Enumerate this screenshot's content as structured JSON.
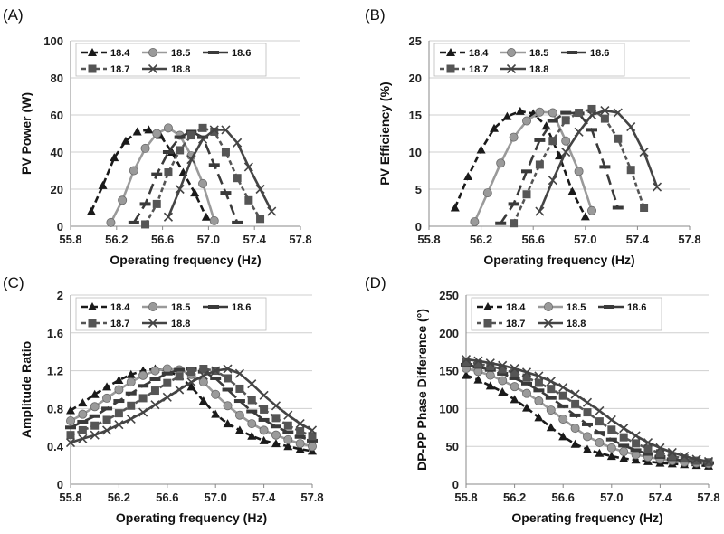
{
  "chart_data": [
    {
      "id": "A",
      "type": "line",
      "panel_label": "(A)",
      "title": "",
      "xlabel": "Operating frequency (Hz)",
      "ylabel": "PV Power (W)",
      "xlim": [
        55.8,
        57.8
      ],
      "ylim": [
        0,
        100
      ],
      "xticks": [
        "55.8",
        "56.2",
        "56.6",
        "57.0",
        "57.4",
        "57.8"
      ],
      "yticks": [
        "0",
        "20",
        "40",
        "60",
        "80",
        "100"
      ],
      "grid": "horizontal",
      "legend_position": "top",
      "series": [
        {
          "name": "18.4",
          "color": "#1a1a1a",
          "marker": "triangle",
          "x": [
            55.98,
            56.08,
            56.18,
            56.28,
            56.38,
            56.48,
            56.58,
            56.68,
            56.78,
            56.88,
            56.98
          ],
          "y": [
            8,
            22,
            37,
            46,
            51,
            52,
            49,
            40,
            29,
            18,
            5
          ]
        },
        {
          "name": "18.5",
          "color": "#9a9a9a",
          "marker": "circle",
          "x": [
            56.15,
            56.25,
            56.35,
            56.45,
            56.55,
            56.65,
            56.75,
            56.85,
            56.95,
            57.05
          ],
          "y": [
            2,
            14,
            30,
            42,
            50,
            53,
            49,
            38,
            23,
            3
          ]
        },
        {
          "name": "18.6",
          "color": "#3a3a3a",
          "marker": "dash",
          "x": [
            56.35,
            56.45,
            56.55,
            56.65,
            56.75,
            56.85,
            56.95,
            57.05,
            57.15,
            57.25
          ],
          "y": [
            2,
            12,
            28,
            40,
            48,
            51,
            48,
            33,
            18,
            2
          ]
        },
        {
          "name": "18.7",
          "color": "#555555",
          "marker": "square",
          "x": [
            56.45,
            56.55,
            56.65,
            56.75,
            56.85,
            56.95,
            57.05,
            57.15,
            57.25,
            57.35,
            57.45
          ],
          "y": [
            1,
            12,
            29,
            41,
            49,
            53,
            51,
            40,
            26,
            14,
            4
          ]
        },
        {
          "name": "18.8",
          "color": "#444444",
          "marker": "x",
          "x": [
            56.65,
            56.75,
            56.85,
            56.95,
            57.05,
            57.15,
            57.25,
            57.35,
            57.45,
            57.55
          ],
          "y": [
            5,
            20,
            36,
            47,
            52,
            52,
            45,
            32,
            20,
            8
          ]
        }
      ]
    },
    {
      "id": "B",
      "type": "line",
      "panel_label": "(B)",
      "title": "",
      "xlabel": "Operating frequency (Hz)",
      "ylabel": "PV Efficiency (%)",
      "xlim": [
        55.8,
        57.8
      ],
      "ylim": [
        0,
        25
      ],
      "xticks": [
        "55.8",
        "56.2",
        "56.6",
        "57.0",
        "57.4",
        "57.8"
      ],
      "yticks": [
        "0",
        "5",
        "10",
        "15",
        "20",
        "25"
      ],
      "grid": "horizontal",
      "legend_position": "top",
      "series": [
        {
          "name": "18.4",
          "color": "#1a1a1a",
          "marker": "triangle",
          "x": [
            56.0,
            56.1,
            56.2,
            56.3,
            56.4,
            56.5,
            56.6,
            56.7,
            56.8,
            56.9,
            57.0
          ],
          "y": [
            2.5,
            6.7,
            10.3,
            13.2,
            14.8,
            15.5,
            15.2,
            13.5,
            9.5,
            4.7,
            1.3
          ]
        },
        {
          "name": "18.5",
          "color": "#9a9a9a",
          "marker": "circle",
          "x": [
            56.15,
            56.25,
            56.35,
            56.45,
            56.55,
            56.65,
            56.75,
            56.85,
            56.95,
            57.05
          ],
          "y": [
            0.6,
            4.5,
            8.5,
            12.0,
            14.2,
            15.4,
            15.3,
            11.5,
            7.4,
            2.1
          ]
        },
        {
          "name": "18.6",
          "color": "#3a3a3a",
          "marker": "dash",
          "x": [
            56.35,
            56.45,
            56.55,
            56.65,
            56.75,
            56.85,
            56.95,
            57.05,
            57.15,
            57.25
          ],
          "y": [
            0.4,
            3.0,
            7.4,
            11.6,
            14.2,
            15.3,
            15.2,
            13.0,
            8.0,
            2.5
          ]
        },
        {
          "name": "18.7",
          "color": "#555555",
          "marker": "square",
          "x": [
            56.45,
            56.55,
            56.65,
            56.75,
            56.85,
            56.95,
            57.05,
            57.15,
            57.25,
            57.35,
            57.45
          ],
          "y": [
            0.4,
            4.3,
            8.3,
            11.5,
            14.3,
            15.3,
            15.8,
            14.5,
            11.8,
            7.6,
            2.5
          ]
        },
        {
          "name": "18.8",
          "color": "#444444",
          "marker": "x",
          "x": [
            56.65,
            56.75,
            56.85,
            56.95,
            57.05,
            57.15,
            57.25,
            57.35,
            57.45,
            57.55
          ],
          "y": [
            2.0,
            6.2,
            10.0,
            12.7,
            15.0,
            15.6,
            15.3,
            13.4,
            10.0,
            5.3
          ]
        }
      ]
    },
    {
      "id": "C",
      "type": "line",
      "panel_label": "(C)",
      "title": "",
      "xlabel": "Operating frequency (Hz)",
      "ylabel": "Amplitude Ratio",
      "xlim": [
        55.8,
        57.8
      ],
      "ylim": [
        0,
        2
      ],
      "xticks": [
        "55.8",
        "56.2",
        "56.6",
        "57.0",
        "57.4",
        "57.8"
      ],
      "yticks": [
        "0",
        "0.4",
        "0.8",
        "1.2",
        "1.6",
        "2"
      ],
      "grid": "horizontal",
      "legend_position": "top",
      "series": [
        {
          "name": "18.4",
          "color": "#1a1a1a",
          "marker": "triangle",
          "x": [
            55.8,
            55.9,
            56.0,
            56.1,
            56.2,
            56.3,
            56.4,
            56.5,
            56.6,
            56.7,
            56.8,
            56.9,
            57.0,
            57.1,
            57.2,
            57.3,
            57.4,
            57.5,
            57.6,
            57.7,
            57.8
          ],
          "y": [
            0.78,
            0.86,
            0.95,
            1.03,
            1.1,
            1.16,
            1.2,
            1.22,
            1.2,
            1.14,
            1.03,
            0.88,
            0.74,
            0.64,
            0.57,
            0.51,
            0.46,
            0.43,
            0.4,
            0.37,
            0.35
          ]
        },
        {
          "name": "18.5",
          "color": "#9a9a9a",
          "marker": "circle",
          "x": [
            55.8,
            55.9,
            56.0,
            56.1,
            56.2,
            56.3,
            56.4,
            56.5,
            56.6,
            56.7,
            56.8,
            56.9,
            57.0,
            57.1,
            57.2,
            57.3,
            57.4,
            57.5,
            57.6,
            57.7,
            57.8
          ],
          "y": [
            0.67,
            0.74,
            0.82,
            0.91,
            1.0,
            1.08,
            1.15,
            1.2,
            1.22,
            1.21,
            1.16,
            1.08,
            0.95,
            0.83,
            0.73,
            0.64,
            0.57,
            0.52,
            0.47,
            0.43,
            0.4
          ]
        },
        {
          "name": "18.6",
          "color": "#3a3a3a",
          "marker": "dash",
          "x": [
            55.8,
            55.9,
            56.0,
            56.1,
            56.2,
            56.3,
            56.4,
            56.5,
            56.6,
            56.7,
            56.8,
            56.9,
            57.0,
            57.1,
            57.2,
            57.3,
            57.4,
            57.5,
            57.6,
            57.7,
            57.8
          ],
          "y": [
            0.6,
            0.66,
            0.72,
            0.8,
            0.88,
            0.96,
            1.04,
            1.11,
            1.17,
            1.21,
            1.22,
            1.19,
            1.12,
            1.0,
            0.88,
            0.77,
            0.68,
            0.61,
            0.55,
            0.5,
            0.46
          ]
        },
        {
          "name": "18.7",
          "color": "#555555",
          "marker": "square",
          "x": [
            55.8,
            55.9,
            56.0,
            56.1,
            56.2,
            56.3,
            56.4,
            56.5,
            56.6,
            56.7,
            56.8,
            56.9,
            57.0,
            57.1,
            57.2,
            57.3,
            57.4,
            57.5,
            57.6,
            57.7,
            57.8
          ],
          "y": [
            0.52,
            0.57,
            0.62,
            0.68,
            0.75,
            0.83,
            0.91,
            0.99,
            1.07,
            1.14,
            1.19,
            1.22,
            1.2,
            1.12,
            1.01,
            0.89,
            0.79,
            0.7,
            0.62,
            0.56,
            0.51
          ]
        },
        {
          "name": "18.8",
          "color": "#444444",
          "marker": "x",
          "x": [
            55.8,
            55.9,
            56.0,
            56.1,
            56.2,
            56.3,
            56.4,
            56.5,
            56.6,
            56.7,
            56.8,
            56.9,
            57.0,
            57.1,
            57.2,
            57.3,
            57.4,
            57.5,
            57.6,
            57.7,
            57.8
          ],
          "y": [
            0.44,
            0.48,
            0.52,
            0.57,
            0.63,
            0.69,
            0.76,
            0.84,
            0.92,
            1.0,
            1.08,
            1.15,
            1.2,
            1.22,
            1.17,
            1.06,
            0.94,
            0.83,
            0.73,
            0.64,
            0.57
          ]
        }
      ]
    },
    {
      "id": "D",
      "type": "line",
      "panel_label": "(D)",
      "title": "",
      "xlabel": "Operating frequency (Hz)",
      "ylabel": "DP-PP Phase Difference (°)",
      "xlim": [
        55.8,
        57.8
      ],
      "ylim": [
        0,
        250
      ],
      "xticks": [
        "55.8",
        "56.2",
        "56.6",
        "57.0",
        "57.4",
        "57.8"
      ],
      "yticks": [
        "0",
        "50",
        "100",
        "150",
        "200",
        "250"
      ],
      "grid": "horizontal",
      "legend_position": "top",
      "series": [
        {
          "name": "18.4",
          "color": "#1a1a1a",
          "marker": "triangle",
          "x": [
            55.8,
            55.9,
            56.0,
            56.1,
            56.2,
            56.3,
            56.4,
            56.5,
            56.6,
            56.7,
            56.8,
            56.9,
            57.0,
            57.1,
            57.2,
            57.3,
            57.4,
            57.5,
            57.6,
            57.7,
            57.8
          ],
          "y": [
            144,
            138,
            130,
            122,
            112,
            101,
            88,
            75,
            63,
            53,
            46,
            41,
            37,
            34,
            32,
            30,
            28,
            27,
            26,
            25,
            24
          ]
        },
        {
          "name": "18.5",
          "color": "#9a9a9a",
          "marker": "circle",
          "x": [
            55.8,
            55.9,
            56.0,
            56.1,
            56.2,
            56.3,
            56.4,
            56.5,
            56.6,
            56.7,
            56.8,
            56.9,
            57.0,
            57.1,
            57.2,
            57.3,
            57.4,
            57.5,
            57.6,
            57.7,
            57.8
          ],
          "y": [
            153,
            149,
            144,
            137,
            129,
            120,
            110,
            98,
            86,
            74,
            63,
            55,
            48,
            43,
            39,
            36,
            33,
            31,
            29,
            28,
            27
          ]
        },
        {
          "name": "18.6",
          "color": "#3a3a3a",
          "marker": "dash",
          "x": [
            55.8,
            55.9,
            56.0,
            56.1,
            56.2,
            56.3,
            56.4,
            56.5,
            56.6,
            56.7,
            56.8,
            56.9,
            57.0,
            57.1,
            57.2,
            57.3,
            57.4,
            57.5,
            57.6,
            57.7,
            57.8
          ],
          "y": [
            158,
            155,
            151,
            146,
            140,
            133,
            124,
            114,
            103,
            91,
            79,
            68,
            59,
            51,
            45,
            40,
            36,
            33,
            31,
            29,
            28
          ]
        },
        {
          "name": "18.7",
          "color": "#555555",
          "marker": "square",
          "x": [
            55.8,
            55.9,
            56.0,
            56.1,
            56.2,
            56.3,
            56.4,
            56.5,
            56.6,
            56.7,
            56.8,
            56.9,
            57.0,
            57.1,
            57.2,
            57.3,
            57.4,
            57.5,
            57.6,
            57.7,
            57.8
          ],
          "y": [
            162,
            159,
            156,
            152,
            147,
            141,
            134,
            126,
            117,
            106,
            95,
            83,
            72,
            62,
            54,
            47,
            41,
            37,
            34,
            31,
            29
          ]
        },
        {
          "name": "18.8",
          "color": "#444444",
          "marker": "x",
          "x": [
            55.8,
            55.9,
            56.0,
            56.1,
            56.2,
            56.3,
            56.4,
            56.5,
            56.6,
            56.7,
            56.8,
            56.9,
            57.0,
            57.1,
            57.2,
            57.3,
            57.4,
            57.5,
            57.6,
            57.7,
            57.8
          ],
          "y": [
            165,
            163,
            160,
            157,
            153,
            148,
            143,
            136,
            128,
            119,
            108,
            97,
            85,
            74,
            64,
            55,
            48,
            42,
            37,
            33,
            30
          ]
        }
      ]
    }
  ]
}
